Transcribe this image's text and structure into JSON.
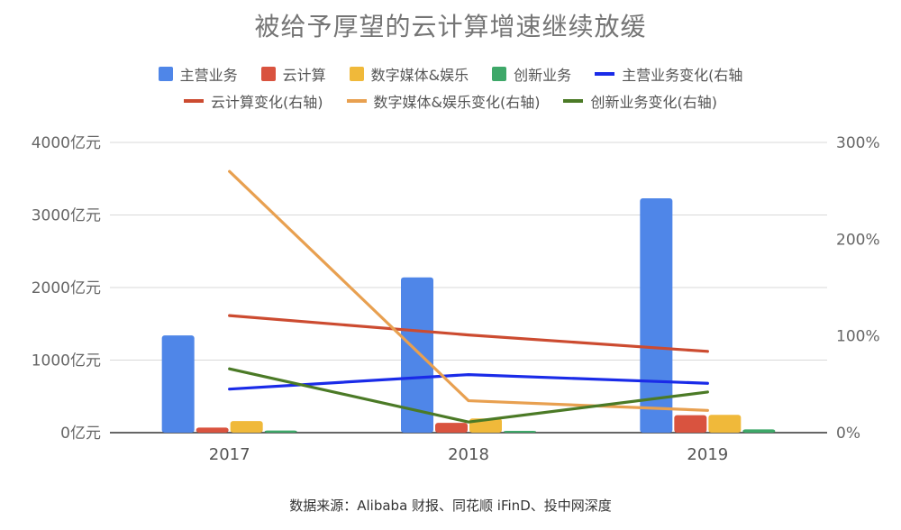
{
  "chart_data": {
    "type": "bar",
    "title": "被给予厚望的云计算增速继续放缓",
    "categories": [
      "2017",
      "2018",
      "2019"
    ],
    "y_left": {
      "ticks": [
        0,
        1000,
        2000,
        3000,
        4000
      ],
      "tick_labels": [
        "0亿元",
        "1000亿元",
        "2000亿元",
        "3000亿元",
        "4000亿元"
      ],
      "lim": [
        0,
        4000
      ]
    },
    "y_right": {
      "ticks": [
        0,
        100,
        200,
        300
      ],
      "tick_labels": [
        "0%",
        "100%",
        "200%",
        "300%"
      ],
      "lim": [
        0,
        300
      ]
    },
    "bar_series": [
      {
        "name": "主营业务",
        "color": "#4f86e8",
        "values": [
          1340,
          2140,
          3230
        ]
      },
      {
        "name": "云计算",
        "color": "#d9533f",
        "values": [
          70,
          135,
          240
        ]
      },
      {
        "name": "数字媒体&娱乐",
        "color": "#f0b93a",
        "values": [
          160,
          195,
          245
        ]
      },
      {
        "name": "创新业务",
        "color": "#3ea869",
        "values": [
          30,
          25,
          45
        ]
      }
    ],
    "line_series": [
      {
        "name": "主营业务变化(右轴",
        "color": "#1a2be8",
        "values": [
          45,
          60,
          51
        ]
      },
      {
        "name": "云计算变化(右轴)",
        "color": "#cc4b30",
        "values": [
          121,
          101,
          84
        ]
      },
      {
        "name": "数字媒体&娱乐变化(右轴)",
        "color": "#e8a050",
        "values": [
          270,
          33,
          23
        ]
      },
      {
        "name": "创新业务变化(右轴)",
        "color": "#4b7a26",
        "values": [
          66,
          11,
          42
        ]
      }
    ],
    "grid": true,
    "legend_position": "top"
  },
  "source": "数据来源：Alibaba 财报、同花顺 iFinD、投中网深度"
}
